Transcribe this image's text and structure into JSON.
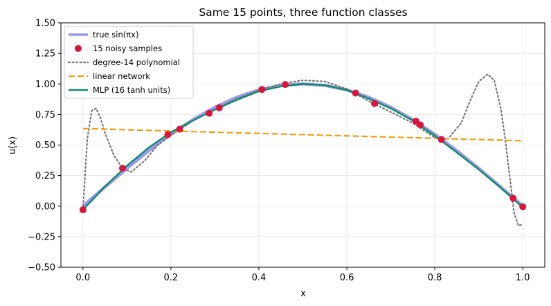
{
  "chart_data": {
    "type": "line",
    "title": "Same 15 points, three function classes",
    "xlabel": "x",
    "ylabel": "u(x)",
    "xlim": [
      -0.05,
      1.05
    ],
    "ylim": [
      -0.5,
      1.5
    ],
    "xticks": [
      0.0,
      0.2,
      0.4,
      0.6,
      0.8,
      1.0
    ],
    "xtick_labels": [
      "0.0",
      "0.2",
      "0.4",
      "0.6",
      "0.8",
      "1.0"
    ],
    "yticks": [
      -0.5,
      -0.25,
      0.0,
      0.25,
      0.5,
      0.75,
      1.0,
      1.25,
      1.5
    ],
    "ytick_labels": [
      "−0.50",
      "−0.25",
      "0.00",
      "0.25",
      "0.50",
      "0.75",
      "1.00",
      "1.25",
      "1.50"
    ],
    "grid": true,
    "legend_position": "top-left",
    "series": [
      {
        "name": "true sin(πx)",
        "kind": "line",
        "color": "#9c98f0",
        "style": "solid",
        "x": [
          0.0,
          0.05,
          0.1,
          0.15,
          0.2,
          0.25,
          0.3,
          0.35,
          0.4,
          0.45,
          0.5,
          0.55,
          0.6,
          0.65,
          0.7,
          0.75,
          0.8,
          0.85,
          0.9,
          0.95,
          1.0
        ],
        "y": [
          0.0,
          0.156,
          0.309,
          0.454,
          0.588,
          0.707,
          0.809,
          0.891,
          0.951,
          0.988,
          1.0,
          0.988,
          0.951,
          0.891,
          0.809,
          0.707,
          0.588,
          0.454,
          0.309,
          0.156,
          0.0
        ]
      },
      {
        "name": "15 noisy samples",
        "kind": "scatter",
        "color": "#dc143c",
        "x": [
          0.0,
          0.09,
          0.193,
          0.22,
          0.287,
          0.31,
          0.407,
          0.46,
          0.62,
          0.663,
          0.757,
          0.767,
          0.815,
          0.978,
          1.0
        ],
        "y": [
          -0.03,
          0.31,
          0.585,
          0.63,
          0.76,
          0.805,
          0.955,
          0.995,
          0.925,
          0.84,
          0.695,
          0.665,
          0.545,
          0.065,
          -0.005
        ]
      },
      {
        "name": "degree-14 polynomial",
        "kind": "line",
        "color": "#777777",
        "style": "dotted",
        "x": [
          0.0,
          0.01,
          0.02,
          0.03,
          0.04,
          0.05,
          0.07,
          0.09,
          0.11,
          0.14,
          0.17,
          0.2,
          0.25,
          0.3,
          0.35,
          0.4,
          0.45,
          0.5,
          0.55,
          0.6,
          0.65,
          0.7,
          0.75,
          0.8,
          0.83,
          0.86,
          0.88,
          0.9,
          0.92,
          0.935,
          0.95,
          0.96,
          0.97,
          0.98,
          0.99,
          1.0
        ],
        "y": [
          -0.03,
          0.55,
          0.78,
          0.8,
          0.72,
          0.6,
          0.42,
          0.31,
          0.28,
          0.37,
          0.5,
          0.58,
          0.7,
          0.79,
          0.88,
          0.95,
          1.0,
          1.03,
          1.02,
          0.96,
          0.86,
          0.77,
          0.68,
          0.56,
          0.55,
          0.68,
          0.86,
          1.02,
          1.08,
          1.03,
          0.8,
          0.55,
          0.25,
          -0.05,
          -0.16,
          -0.15
        ]
      },
      {
        "name": "linear network",
        "kind": "line",
        "color": "#f39c12",
        "style": "dashed",
        "x": [
          0.0,
          1.0
        ],
        "y": [
          0.635,
          0.535
        ]
      },
      {
        "name": "MLP (16 tanh units)",
        "kind": "line",
        "color": "#0f8c6a",
        "style": "solid",
        "x": [
          0.0,
          0.05,
          0.1,
          0.15,
          0.2,
          0.25,
          0.3,
          0.35,
          0.4,
          0.45,
          0.5,
          0.55,
          0.6,
          0.65,
          0.7,
          0.75,
          0.8,
          0.85,
          0.9,
          0.95,
          1.0
        ],
        "y": [
          -0.03,
          0.16,
          0.33,
          0.48,
          0.605,
          0.7,
          0.79,
          0.87,
          0.94,
          0.98,
          1.0,
          0.99,
          0.95,
          0.88,
          0.8,
          0.7,
          0.575,
          0.44,
          0.3,
          0.15,
          -0.01
        ]
      }
    ]
  }
}
